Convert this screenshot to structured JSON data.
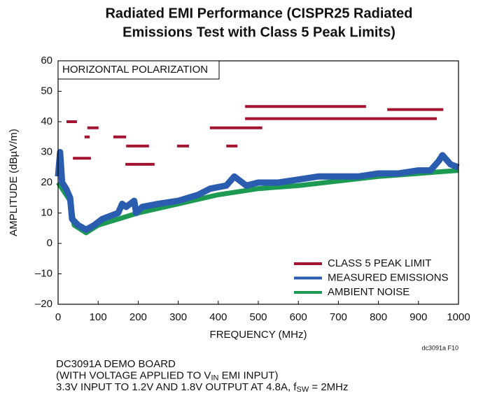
{
  "chart_data": {
    "type": "line",
    "title": [
      "Radiated EMI Performance (CISPR25 Radiated",
      "Emissions Test with Class 5 Peak Limits)"
    ],
    "annotation": "HORIZONTAL POLARIZATION",
    "xlabel": "FREQUENCY (MHz)",
    "ylabel": "AMPLITUDE (dBµV/m)",
    "figure_id": "dc3091a F10",
    "notes": [
      [
        "DC3091A DEMO BOARD"
      ],
      [
        "(WITH VOLTAGE APPLIED TO V",
        "IN",
        " EMI INPUT)"
      ],
      [
        "3.3V INPUT TO 1.2V AND 1.8V OUTPUT AT 4.8A, f",
        "SW",
        " = 2MHz"
      ]
    ],
    "xlim": [
      0,
      1000
    ],
    "xticks": [
      0,
      100,
      200,
      300,
      400,
      500,
      600,
      700,
      800,
      900,
      1000
    ],
    "ylim": [
      -20,
      60
    ],
    "yticks": [
      {
        "value": -20,
        "label": "–20"
      },
      {
        "value": -10,
        "label": "–10"
      },
      0,
      10,
      20,
      30,
      40,
      50,
      60
    ],
    "legend": "lower right",
    "limit": {
      "name": "CLASS 5 PEAK LIMIT",
      "color": "#a3122e",
      "segments": [
        {
          "x": [
            21,
            47
          ],
          "value": 40
        },
        {
          "x": [
            37,
            82
          ],
          "value": 28
        },
        {
          "x": [
            66,
            79
          ],
          "value": 35
        },
        {
          "x": [
            73,
            101
          ],
          "value": 38
        },
        {
          "x": [
            138,
            170
          ],
          "value": 35
        },
        {
          "x": [
            170,
            227
          ],
          "value": 32
        },
        {
          "x": [
            168,
            241
          ],
          "value": 26
        },
        {
          "x": [
            297,
            327
          ],
          "value": 32
        },
        {
          "x": [
            379,
            510
          ],
          "value": 38
        },
        {
          "x": [
            420,
            448
          ],
          "value": 32
        },
        {
          "x": [
            467,
            769
          ],
          "value": 45
        },
        {
          "x": [
            467,
            946
          ],
          "value": 41
        },
        {
          "x": [
            822,
            962
          ],
          "value": 44
        }
      ]
    },
    "series": [
      {
        "name": "MEASURED EMISSIONS",
        "color": "#2a5cb0",
        "x": [
          0,
          5,
          10,
          20,
          30,
          35,
          50,
          70,
          90,
          110,
          130,
          150,
          160,
          170,
          190,
          195,
          210,
          250,
          300,
          350,
          380,
          420,
          440,
          470,
          500,
          550,
          600,
          650,
          700,
          750,
          800,
          850,
          900,
          930,
          950,
          960,
          980,
          1000
        ],
        "values": [
          22,
          30,
          20,
          18,
          15,
          8,
          6,
          4.5,
          6,
          8,
          9,
          10,
          13,
          12,
          14,
          10,
          12,
          13,
          14,
          16,
          18,
          19,
          22,
          19,
          20,
          20,
          21,
          22,
          22,
          22,
          23,
          23,
          24,
          24,
          27,
          29,
          26,
          25
        ]
      },
      {
        "name": "AMBIENT NOISE",
        "color": "#1d9a52",
        "x": [
          0,
          30,
          40,
          70,
          100,
          150,
          200,
          300,
          400,
          500,
          600,
          700,
          800,
          900,
          950,
          1000
        ],
        "values": [
          20,
          14,
          6,
          3.5,
          6,
          8,
          10,
          13,
          16,
          18,
          19,
          20.5,
          22,
          23,
          23.5,
          24
        ]
      }
    ]
  }
}
